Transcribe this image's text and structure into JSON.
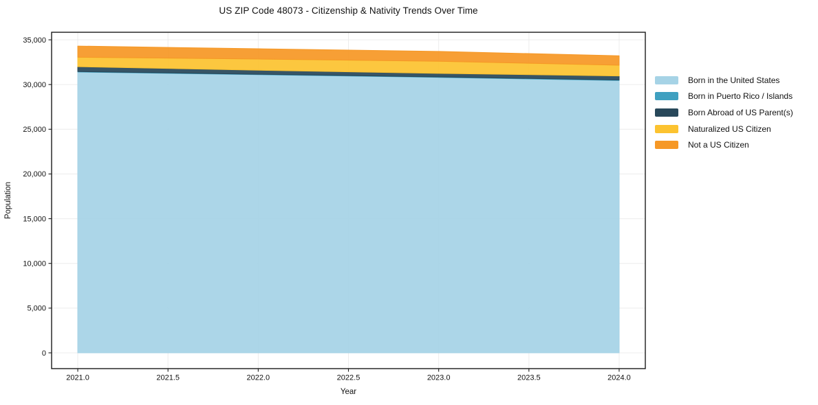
{
  "chart_data": {
    "type": "area",
    "stacked": true,
    "title": "US ZIP Code 48073 - Citizenship & Nativity Trends Over Time",
    "xlabel": "Year",
    "ylabel": "Population",
    "x": [
      2021,
      2022,
      2023,
      2024
    ],
    "series": [
      {
        "name": "Born in the United States",
        "color": "#a6d3e6",
        "values": [
          31400,
          31100,
          30800,
          30450
        ]
      },
      {
        "name": "Born in Puerto Rico / Islands",
        "color": "#3fa0c0",
        "values": [
          50,
          50,
          50,
          60
        ]
      },
      {
        "name": "Born Abroad of US Parent(s)",
        "color": "#28485a",
        "values": [
          550,
          450,
          400,
          450
        ]
      },
      {
        "name": "Naturalized US Citizen",
        "color": "#fcc330",
        "values": [
          1050,
          1250,
          1350,
          1200
        ]
      },
      {
        "name": "Not a US Citizen",
        "color": "#f69826",
        "values": [
          1250,
          1150,
          1100,
          1050
        ]
      }
    ],
    "totals": [
      34300,
      34000,
      33700,
      33210
    ],
    "xticks": [
      2021.0,
      2021.5,
      2022.0,
      2022.5,
      2023.0,
      2023.5,
      2024.0
    ],
    "xtick_labels": [
      "2021.0",
      "2021.5",
      "2022.0",
      "2022.5",
      "2023.0",
      "2023.5",
      "2024.0"
    ],
    "yticks": [
      0,
      5000,
      10000,
      15000,
      20000,
      25000,
      30000,
      35000
    ],
    "ytick_labels": [
      "0",
      "5,000",
      "10,000",
      "15,000",
      "20,000",
      "25,000",
      "30,000",
      "35,000"
    ],
    "xlim": [
      2020.855,
      2024.145
    ],
    "ylim": [
      -1765,
      35845
    ],
    "grid": true,
    "grid_color": "#ececec",
    "frame_color": "#1a1a1a",
    "text_color": "#111111",
    "legend_position": "right-outside"
  }
}
